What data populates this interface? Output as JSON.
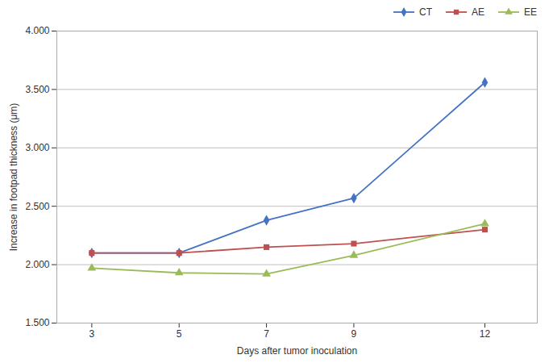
{
  "chart_data": {
    "type": "line",
    "xlabel": "Days after tumor inoculation",
    "ylabel": "Increase in footpad thickness (μm)",
    "x": [
      3,
      5,
      7,
      9,
      12
    ],
    "series": [
      {
        "name": "CT",
        "color": "#4472C4",
        "marker": "diamond",
        "values": [
          2.1,
          2.1,
          2.38,
          2.57,
          3.56
        ]
      },
      {
        "name": "AE",
        "color": "#C0504D",
        "marker": "square",
        "values": [
          2.1,
          2.1,
          2.15,
          2.18,
          2.3
        ]
      },
      {
        "name": "EE",
        "color": "#9BBB59",
        "marker": "triangle",
        "values": [
          1.97,
          1.93,
          1.92,
          2.08,
          2.35
        ]
      }
    ],
    "xlim": [
      2.2,
      13.2
    ],
    "xticks": [
      3,
      5,
      7,
      9,
      12
    ],
    "ylim": [
      1.5,
      4.0
    ],
    "yticks": [
      {
        "value": 1.5,
        "label": "1.500"
      },
      {
        "value": 2.0,
        "label": "2.000"
      },
      {
        "value": 2.5,
        "label": "2.500"
      },
      {
        "value": 3.0,
        "label": "3.000"
      },
      {
        "value": 3.5,
        "label": "3.500"
      },
      {
        "value": 4.0,
        "label": "4.000"
      }
    ],
    "grid": true,
    "legend": "upper right"
  }
}
